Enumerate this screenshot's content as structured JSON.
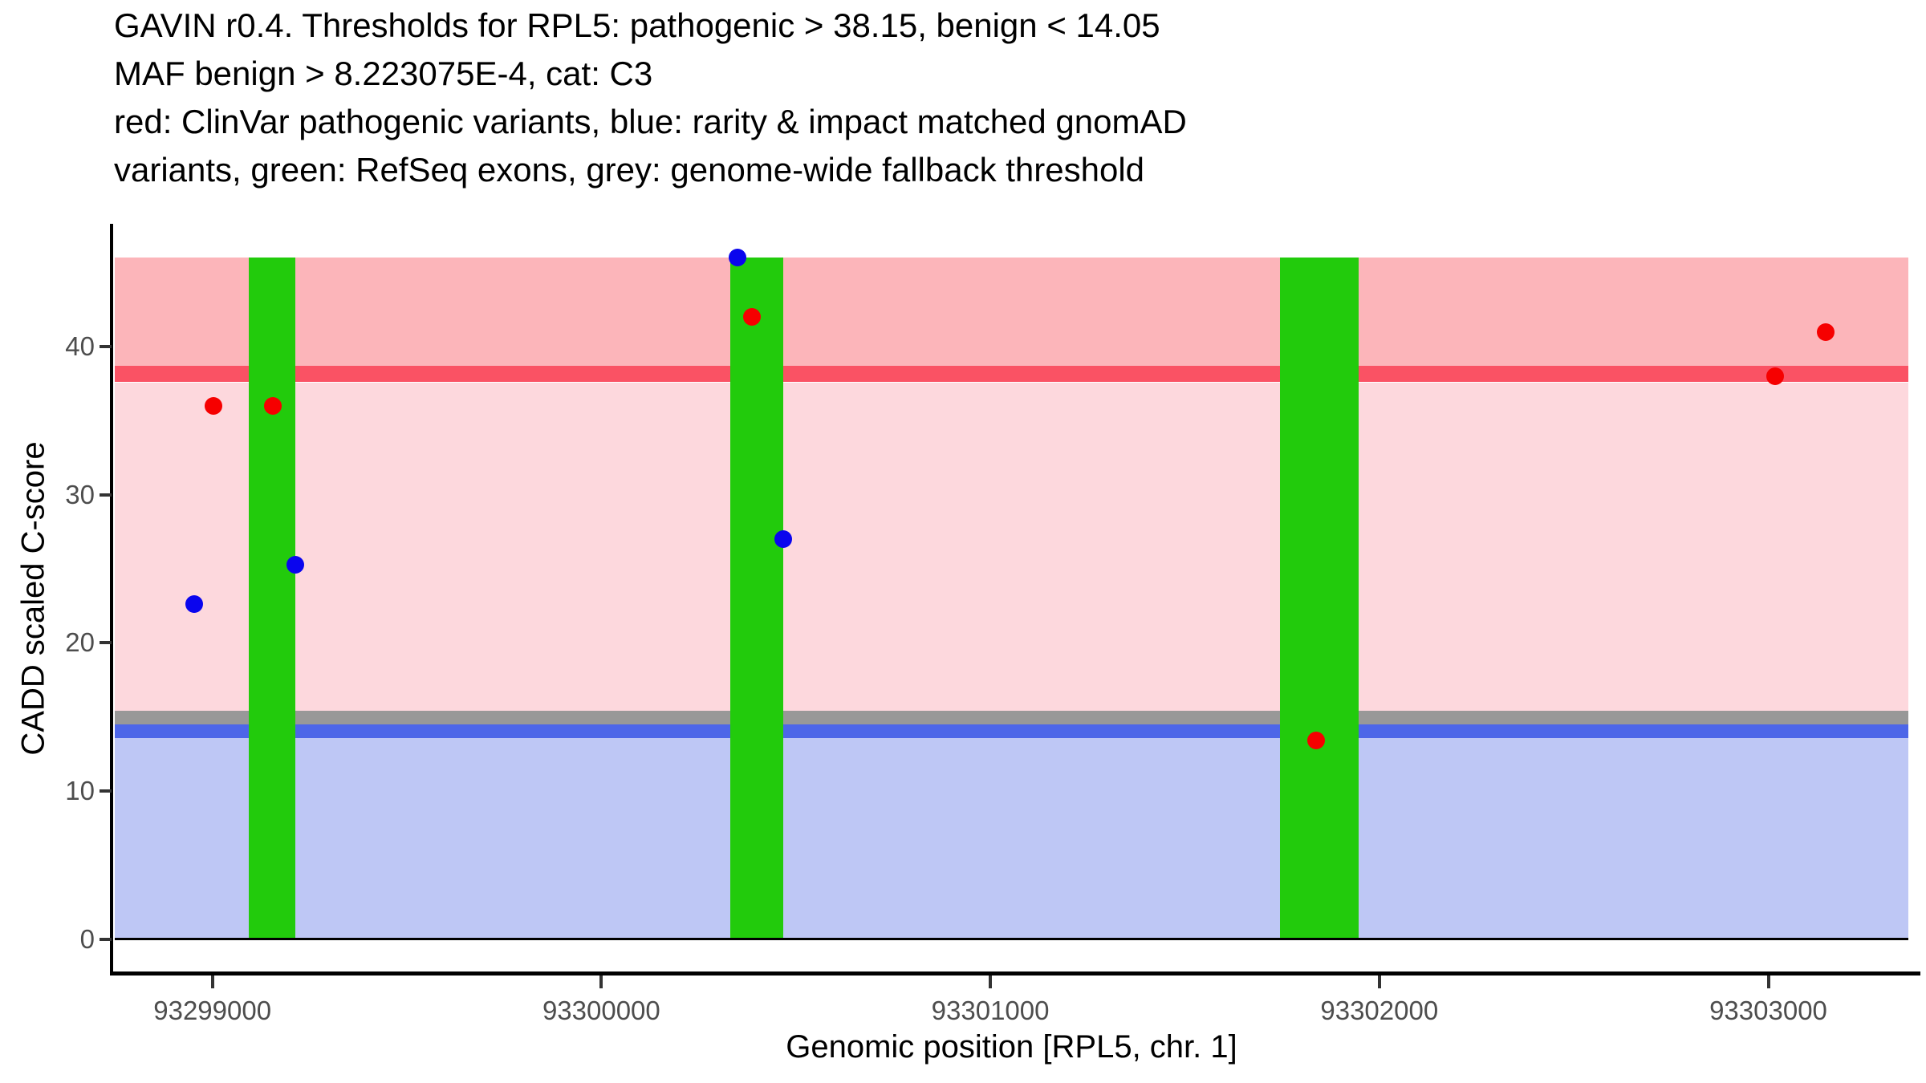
{
  "chart_data": {
    "type": "scatter",
    "title_lines": [
      "GAVIN r0.4. Thresholds for RPL5: pathogenic > 38.15, benign < 14.05",
      "MAF benign > 8.223075E-4, cat: C3",
      "red: ClinVar pathogenic variants, blue: rarity & impact matched gnomAD",
      "variants, green: RefSeq exons, grey: genome-wide fallback threshold"
    ],
    "xlabel": "Genomic position [RPL5, chr. 1]",
    "ylabel": "CADD scaled C-score",
    "x_ticks": [
      93299000,
      93300000,
      93301000,
      93302000,
      93303000
    ],
    "y_ticks": [
      0,
      10,
      20,
      30,
      40
    ],
    "x_domain": [
      93298749,
      93303360
    ],
    "y_domain": [
      -2.3,
      48.3
    ],
    "grid": "off",
    "legend": "none",
    "thresholds": {
      "pathogenic": 38.15,
      "benign": 14.05,
      "maf_benign": "8.223075E-4",
      "category": "C3"
    },
    "bands": [
      {
        "name": "pathogenic-region",
        "from": 38.7,
        "to": 46.0,
        "color": "#FCB5BA"
      },
      {
        "name": "pathogenic-threshold-band",
        "from": 37.6,
        "to": 38.7,
        "color": "#FA5264"
      },
      {
        "name": "vous-region",
        "from": 15.4,
        "to": 37.6,
        "color": "#FDD8DD"
      },
      {
        "name": "genome-wide-fallback-band",
        "from": 14.5,
        "to": 15.4,
        "color": "#989898"
      },
      {
        "name": "benign-threshold-band",
        "from": 13.6,
        "to": 14.5,
        "color": "#4D66E8"
      },
      {
        "name": "benign-region",
        "from": 0.0,
        "to": 13.6,
        "color": "#BEC7F5"
      }
    ],
    "exons": [
      {
        "start": 93299093,
        "end": 93299213
      },
      {
        "start": 93300331,
        "end": 93300467
      },
      {
        "start": 93301744,
        "end": 93301946
      }
    ],
    "exon_color": "#22CB0C",
    "exon_y_range": [
      0,
      46
    ],
    "zero_line_y": 0,
    "series": [
      {
        "name": "ClinVar pathogenic variants",
        "color": "#F60000",
        "points": [
          {
            "x": 93299003,
            "y": 36.0
          },
          {
            "x": 93299155,
            "y": 36.0
          },
          {
            "x": 93300387,
            "y": 42.0
          },
          {
            "x": 93301837,
            "y": 13.4
          },
          {
            "x": 93303017,
            "y": 38.0
          },
          {
            "x": 93303147,
            "y": 41.0
          }
        ]
      },
      {
        "name": "rarity & impact matched gnomAD variants",
        "color": "#0A05EE",
        "points": [
          {
            "x": 93298953,
            "y": 22.6
          },
          {
            "x": 93299213,
            "y": 25.3
          },
          {
            "x": 93300350,
            "y": 46.0
          },
          {
            "x": 93300467,
            "y": 27.0
          }
        ]
      }
    ]
  }
}
